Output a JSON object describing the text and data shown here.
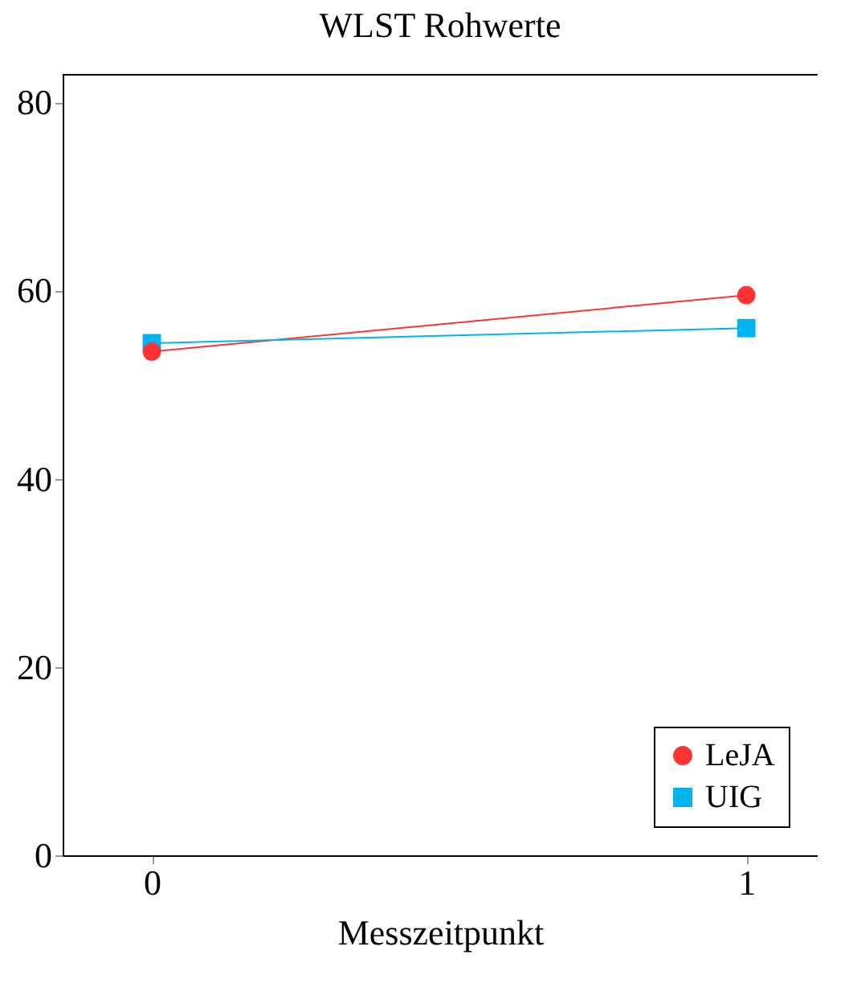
{
  "chart_data": {
    "type": "line",
    "title": "WLST Rohwerte",
    "xlabel": "Messzeitpunkt",
    "x": [
      0,
      1
    ],
    "xlim": [
      -0.15,
      1.12
    ],
    "xticks": [
      0,
      1
    ],
    "ylim": [
      0,
      83
    ],
    "yticks": [
      0,
      20,
      40,
      60,
      80
    ],
    "grid": false,
    "legend": "bottom right",
    "series": [
      {
        "name": "LeJA",
        "color": "#ff3333",
        "marker": "circle",
        "values": [
          53.5,
          59.5
        ]
      },
      {
        "name": "UIG",
        "color": "#00b4ee",
        "marker": "square",
        "values": [
          54.4,
          56.0
        ]
      }
    ]
  }
}
